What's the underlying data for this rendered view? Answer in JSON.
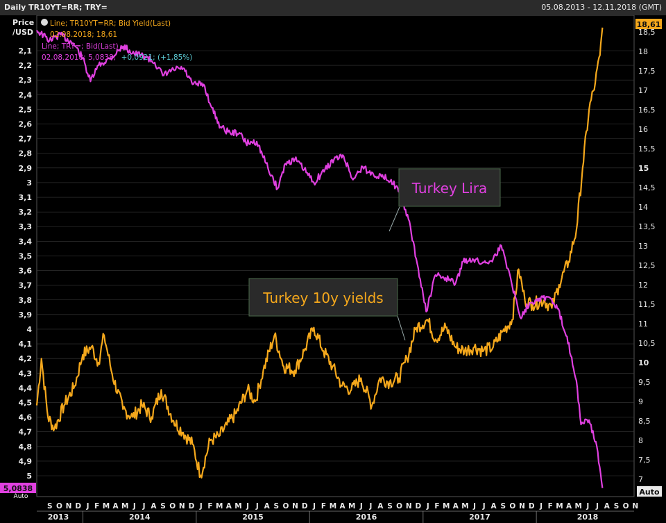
{
  "window": {
    "title": "Daily TR10YT=RR; TRY=",
    "date_range": "05.08.2013 - 12.11.2018 (GMT)"
  },
  "legend": {
    "yield_line1": "Line; TR10YT=RR; Bid Yield(Last)",
    "yield_line2": "02.08.2018; 18,61",
    "lira_line1": "Line; TRY=; Bid(Last)",
    "lira_line2_date": "02.08.2018; 5,0838;",
    "lira_line2_change": "+0,0921; (+1,85%)"
  },
  "axis": {
    "left_title_1": "Price",
    "left_title_2": "/USD",
    "right_auto": "Auto",
    "left_last_value": "5,0838",
    "left_auto": "Auto",
    "right_last_value": "18,61"
  },
  "annotations": {
    "lira": "Turkey Lira",
    "yields": "Turkey 10y yields"
  },
  "colors": {
    "background": "#000000",
    "grid": "#3a3a3a",
    "lira": "#e040e0",
    "yields": "#f5a81c",
    "annotation_bg": "#2a2a2a",
    "annotation_border": "#4a6a4a"
  },
  "chart_data": {
    "type": "line",
    "title": "Daily TR10YT=RR; TRY=",
    "x_range": [
      "2013-08-05",
      "2018-11-12"
    ],
    "left_axis": {
      "label": "Price /USD",
      "inverted": true,
      "ylim": [
        2.0,
        5.1
      ],
      "ticks": [
        "2,1",
        "2,2",
        "2,3",
        "2,4",
        "2,5",
        "2,6",
        "2,7",
        "2,8",
        "2,9",
        "3",
        "3,1",
        "3,2",
        "3,3",
        "3,4",
        "3,5",
        "3,6",
        "3,7",
        "3,8",
        "3,9",
        "4",
        "4,1",
        "4,2",
        "4,3",
        "4,4",
        "4,5",
        "4,6",
        "4,7",
        "4,8",
        "4,9",
        "5"
      ]
    },
    "right_axis": {
      "ylim": [
        6.8,
        19.0
      ],
      "ticks": [
        "7",
        "7,5",
        "8",
        "8,5",
        "9",
        "9,5",
        "10",
        "10,5",
        "11",
        "11,5",
        "12",
        "12,5",
        "13",
        "13,5",
        "14",
        "14,5",
        "15",
        "15,5",
        "16",
        "16,5",
        "17",
        "17,5",
        "18",
        "18,5"
      ]
    },
    "x_axis": {
      "month_labels": [
        "S",
        "O",
        "N",
        "D",
        "J",
        "F",
        "M",
        "A",
        "M",
        "J",
        "J",
        "A",
        "S",
        "O",
        "N",
        "D",
        "J",
        "F",
        "M",
        "A",
        "M",
        "J",
        "J",
        "A",
        "S",
        "O",
        "N",
        "D",
        "J",
        "F",
        "M",
        "A",
        "M",
        "J",
        "J",
        "A",
        "S",
        "O",
        "N",
        "D",
        "J",
        "F",
        "M",
        "A",
        "M",
        "J",
        "J",
        "A",
        "S",
        "O",
        "N",
        "D",
        "J",
        "F",
        "M",
        "A",
        "M",
        "J",
        "J",
        "A",
        "S",
        "O",
        "N"
      ],
      "year_labels": [
        "2013",
        "2014",
        "2015",
        "2016",
        "2017",
        "2018"
      ]
    },
    "series": [
      {
        "name": "Line; TRY=; Bid(Last)",
        "axis": "left",
        "points": [
          [
            "2013-08-05",
            1.96
          ],
          [
            "2013-09-15",
            2.03
          ],
          [
            "2013-10-20",
            1.99
          ],
          [
            "2013-12-01",
            2.05
          ],
          [
            "2013-12-31",
            2.15
          ],
          [
            "2014-01-25",
            2.31
          ],
          [
            "2014-02-20",
            2.2
          ],
          [
            "2014-03-31",
            2.15
          ],
          [
            "2014-05-10",
            2.07
          ],
          [
            "2014-06-15",
            2.12
          ],
          [
            "2014-07-20",
            2.14
          ],
          [
            "2014-08-20",
            2.18
          ],
          [
            "2014-09-15",
            2.27
          ],
          [
            "2014-10-20",
            2.23
          ],
          [
            "2014-11-20",
            2.22
          ],
          [
            "2014-12-20",
            2.33
          ],
          [
            "2015-01-25",
            2.33
          ],
          [
            "2015-02-20",
            2.49
          ],
          [
            "2015-03-20",
            2.62
          ],
          [
            "2015-04-20",
            2.66
          ],
          [
            "2015-05-20",
            2.66
          ],
          [
            "2015-06-10",
            2.73
          ],
          [
            "2015-07-15",
            2.72
          ],
          [
            "2015-08-20",
            2.9
          ],
          [
            "2015-09-20",
            3.04
          ],
          [
            "2015-10-15",
            2.87
          ],
          [
            "2015-11-15",
            2.84
          ],
          [
            "2015-12-15",
            2.91
          ],
          [
            "2016-01-15",
            3.0
          ],
          [
            "2016-02-20",
            2.91
          ],
          [
            "2016-03-20",
            2.84
          ],
          [
            "2016-04-20",
            2.82
          ],
          [
            "2016-05-20",
            2.98
          ],
          [
            "2016-06-20",
            2.89
          ],
          [
            "2016-07-10",
            2.93
          ],
          [
            "2016-08-20",
            2.96
          ],
          [
            "2016-09-20",
            2.98
          ],
          [
            "2016-10-20",
            3.08
          ],
          [
            "2016-11-15",
            3.25
          ],
          [
            "2016-12-10",
            3.52
          ],
          [
            "2017-01-11",
            3.88
          ],
          [
            "2017-02-10",
            3.63
          ],
          [
            "2017-03-15",
            3.65
          ],
          [
            "2017-04-15",
            3.69
          ],
          [
            "2017-05-10",
            3.54
          ],
          [
            "2017-06-10",
            3.52
          ],
          [
            "2017-07-10",
            3.55
          ],
          [
            "2017-08-15",
            3.52
          ],
          [
            "2017-09-10",
            3.43
          ],
          [
            "2017-10-10",
            3.65
          ],
          [
            "2017-11-10",
            3.92
          ],
          [
            "2017-12-10",
            3.82
          ],
          [
            "2018-01-10",
            3.79
          ],
          [
            "2018-02-10",
            3.78
          ],
          [
            "2018-03-10",
            3.86
          ],
          [
            "2018-04-10",
            4.05
          ],
          [
            "2018-05-10",
            4.35
          ],
          [
            "2018-05-25",
            4.65
          ],
          [
            "2018-06-20",
            4.62
          ],
          [
            "2018-07-15",
            4.8
          ],
          [
            "2018-08-02",
            5.0838
          ]
        ]
      },
      {
        "name": "Line; TR10YT=RR; Bid Yield(Last)",
        "axis": "right",
        "points": [
          [
            "2013-08-05",
            8.9
          ],
          [
            "2013-08-20",
            10.1
          ],
          [
            "2013-09-10",
            8.6
          ],
          [
            "2013-10-01",
            8.3
          ],
          [
            "2013-11-01",
            8.9
          ],
          [
            "2013-12-05",
            9.4
          ],
          [
            "2013-12-31",
            10.2
          ],
          [
            "2014-01-28",
            10.4
          ],
          [
            "2014-02-20",
            10.0
          ],
          [
            "2014-03-10",
            10.7
          ],
          [
            "2014-04-05",
            9.7
          ],
          [
            "2014-05-10",
            8.8
          ],
          [
            "2014-06-10",
            8.6
          ],
          [
            "2014-07-10",
            8.9
          ],
          [
            "2014-08-10",
            8.6
          ],
          [
            "2014-09-10",
            9.3
          ],
          [
            "2014-10-20",
            8.5
          ],
          [
            "2014-11-20",
            8.2
          ],
          [
            "2014-12-20",
            7.9
          ],
          [
            "2015-01-15",
            7.1
          ],
          [
            "2015-02-15",
            8.0
          ],
          [
            "2015-03-15",
            8.1
          ],
          [
            "2015-04-10",
            8.4
          ],
          [
            "2015-05-10",
            8.7
          ],
          [
            "2015-06-15",
            9.3
          ],
          [
            "2015-07-10",
            9.0
          ],
          [
            "2015-08-05",
            9.8
          ],
          [
            "2015-09-10",
            10.7
          ],
          [
            "2015-10-10",
            9.9
          ],
          [
            "2015-11-15",
            9.8
          ],
          [
            "2015-12-15",
            10.3
          ],
          [
            "2016-01-15",
            10.9
          ],
          [
            "2016-02-15",
            10.3
          ],
          [
            "2016-03-15",
            9.9
          ],
          [
            "2016-04-15",
            9.4
          ],
          [
            "2016-05-15",
            9.3
          ],
          [
            "2016-06-15",
            9.6
          ],
          [
            "2016-07-20",
            8.9
          ],
          [
            "2016-08-15",
            9.6
          ],
          [
            "2016-09-15",
            9.5
          ],
          [
            "2016-10-15",
            9.6
          ],
          [
            "2016-11-10",
            10.1
          ],
          [
            "2016-12-10",
            10.9
          ],
          [
            "2017-01-15",
            11.1
          ],
          [
            "2017-02-10",
            10.6
          ],
          [
            "2017-03-15",
            10.9
          ],
          [
            "2017-04-15",
            10.4
          ],
          [
            "2017-05-15",
            10.3
          ],
          [
            "2017-06-15",
            10.4
          ],
          [
            "2017-07-15",
            10.3
          ],
          [
            "2017-08-15",
            10.4
          ],
          [
            "2017-09-15",
            10.8
          ],
          [
            "2017-10-15",
            11.1
          ],
          [
            "2017-11-05",
            12.4
          ],
          [
            "2017-11-25",
            11.6
          ],
          [
            "2017-12-20",
            11.5
          ],
          [
            "2018-01-25",
            11.6
          ],
          [
            "2018-02-20",
            11.4
          ],
          [
            "2018-03-15",
            12.0
          ],
          [
            "2018-04-15",
            12.6
          ],
          [
            "2018-05-10",
            13.4
          ],
          [
            "2018-05-30",
            15.0
          ],
          [
            "2018-06-20",
            16.5
          ],
          [
            "2018-07-10",
            17.2
          ],
          [
            "2018-07-25",
            17.9
          ],
          [
            "2018-08-02",
            18.61
          ]
        ]
      }
    ]
  }
}
